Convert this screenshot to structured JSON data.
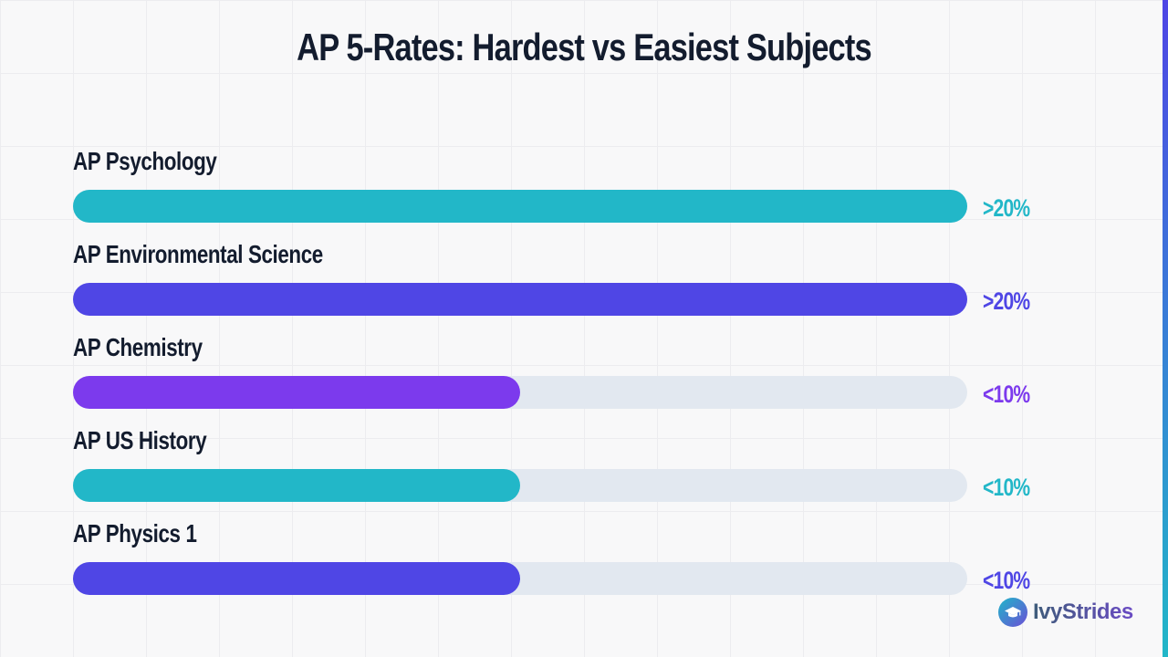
{
  "chart_data": {
    "type": "bar",
    "orientation": "horizontal",
    "title": "AP 5-Rates: Hardest vs Easiest Subjects",
    "xlabel": "",
    "ylabel": "",
    "xlim": [
      0,
      20
    ],
    "grid": false,
    "legend": "none",
    "categories": [
      "AP Psychology",
      "AP Environmental Science",
      "AP Chemistry",
      "AP US History",
      "AP Physics 1"
    ],
    "values": [
      20,
      20,
      10,
      10,
      10
    ],
    "value_labels": [
      ">20%",
      ">20%",
      "<10%",
      "<10%",
      "<10%"
    ],
    "colors": [
      "#22b7c8",
      "#4f46e5",
      "#7c3aed",
      "#22b7c8",
      "#4f46e5"
    ],
    "track_color": "#e2e8f0"
  },
  "brand": {
    "name": "IvyStrides",
    "icon": "graduation-cap-icon",
    "logo_color_start": "#1fb6c9",
    "logo_color_end": "#6c4fd6"
  },
  "accent_strip": {
    "color_start": "#4f46e5",
    "color_end": "#22b7c8"
  }
}
